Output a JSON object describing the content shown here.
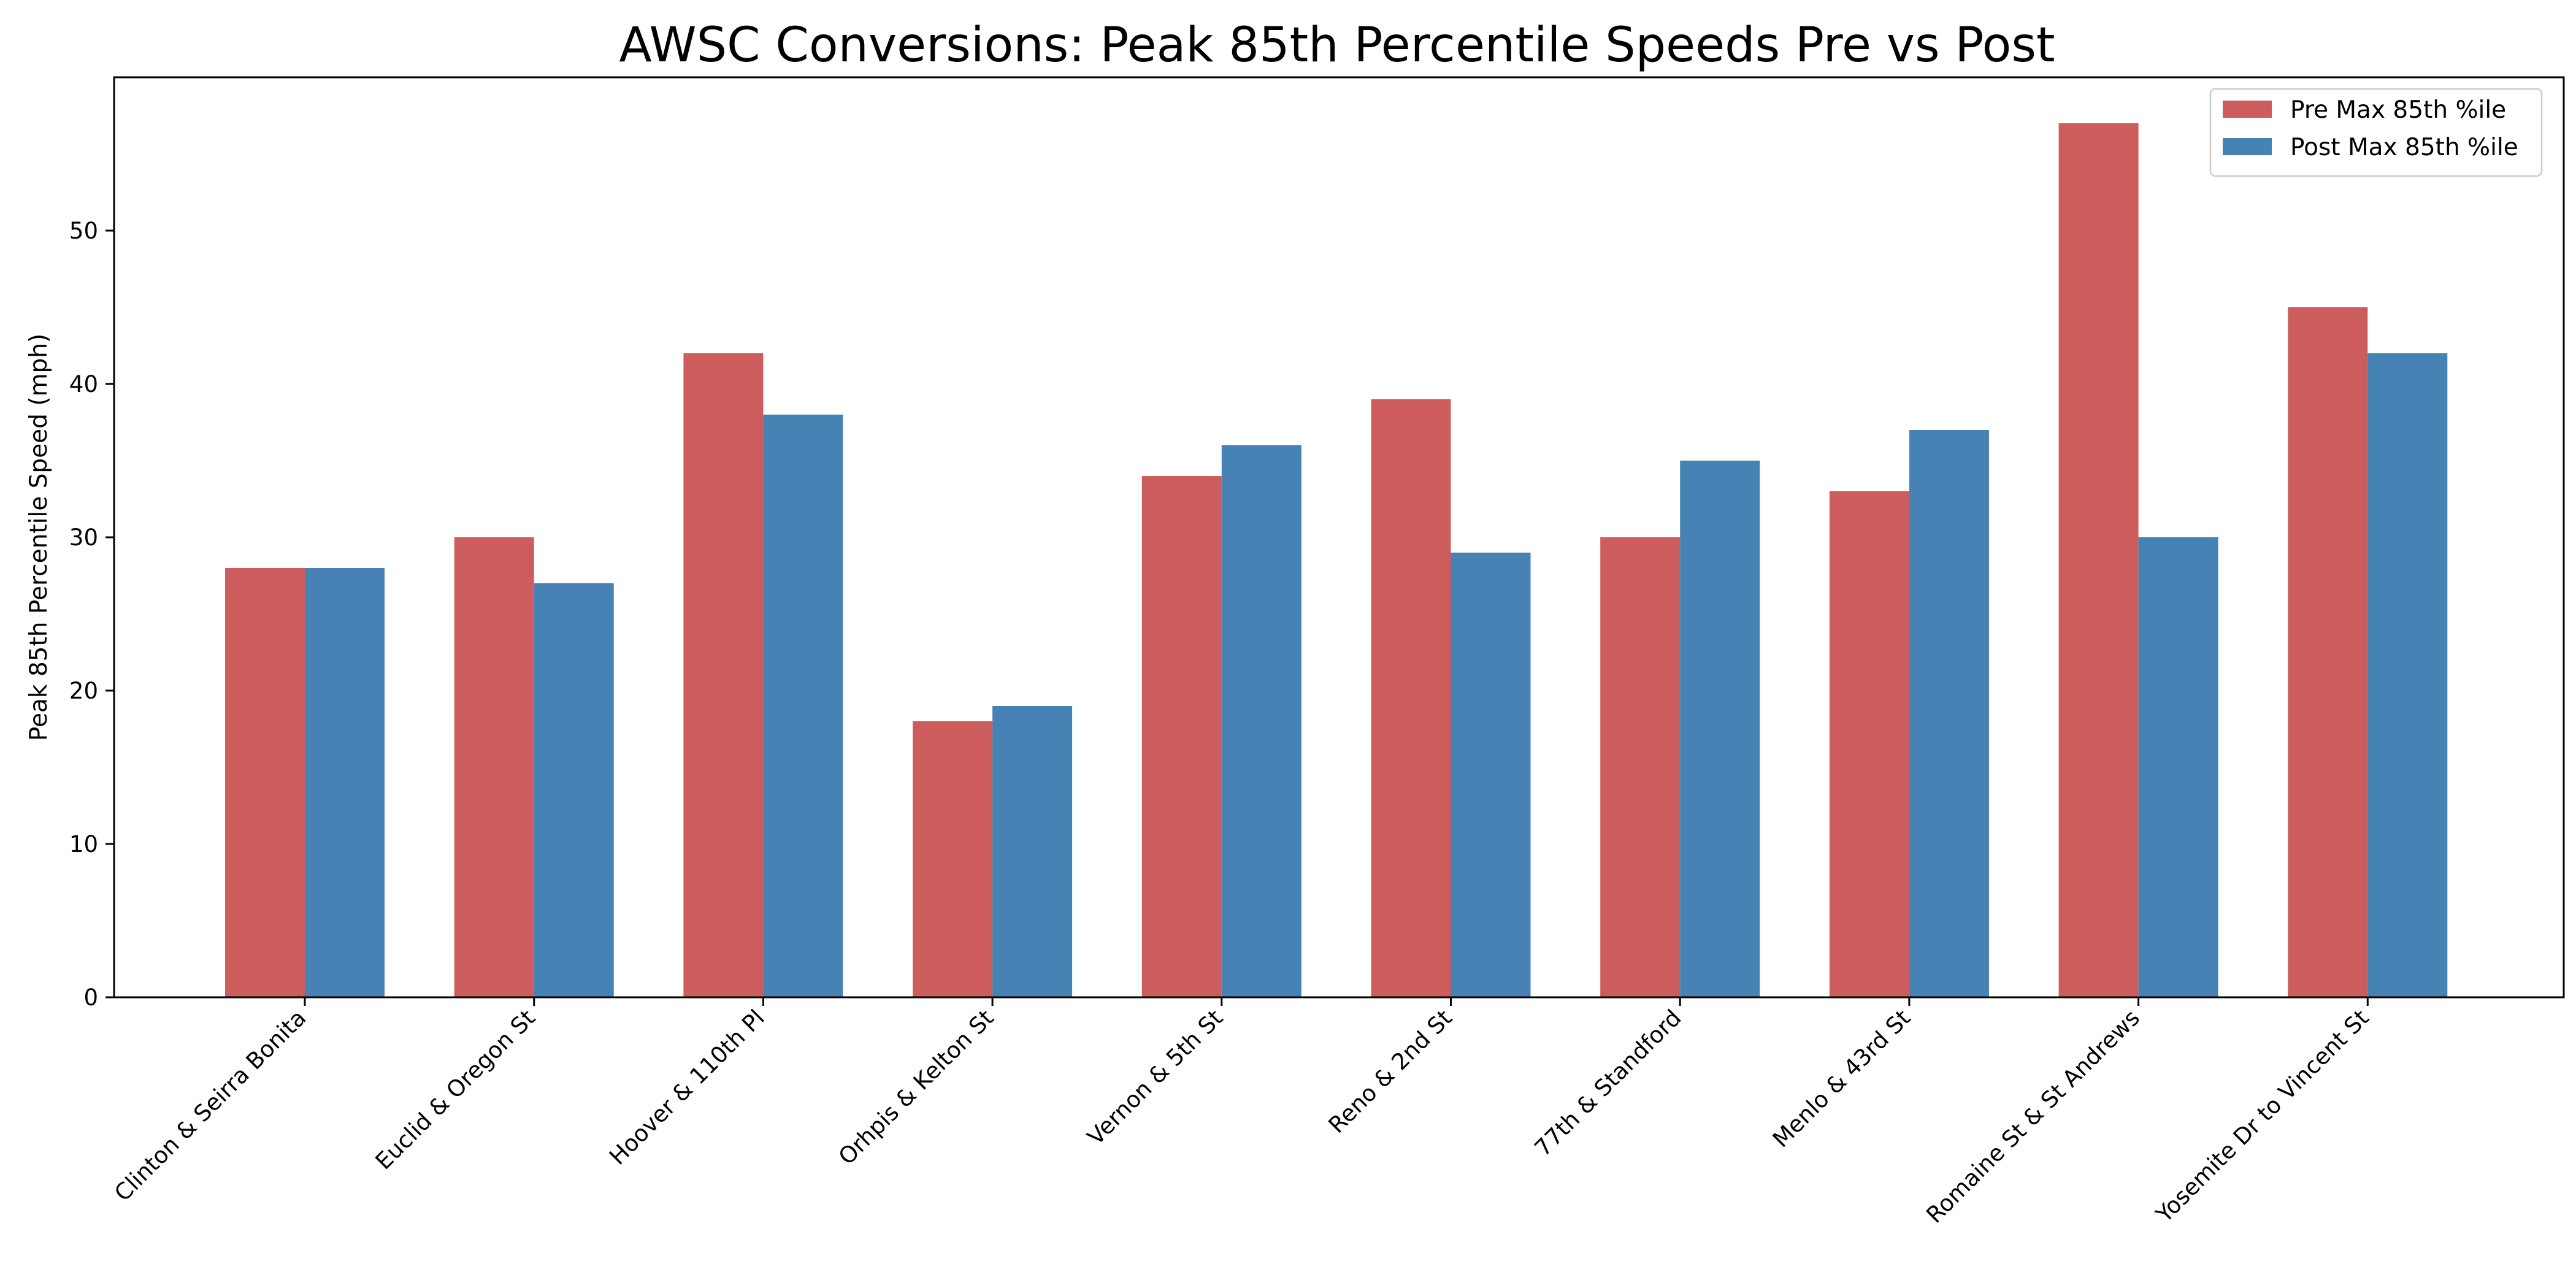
{
  "chart_data": {
    "type": "bar",
    "title": "AWSC Conversions: Peak 85th Percentile Speeds Pre vs Post",
    "xlabel": "",
    "ylabel": "Peak 85th Percentile Speed (mph)",
    "ylim": [
      0,
      60
    ],
    "yticks": [
      0,
      10,
      20,
      30,
      40,
      50
    ],
    "grid": false,
    "legend_position": "top-right",
    "categories": [
      "Clinton & Seirra Bonita",
      "Euclid & Oregon St",
      "Hoover & 110th Pl",
      "Orhpis & Kelton St",
      "Vernon & 5th St",
      "Reno & 2nd St",
      "77th & Standford",
      "Menlo & 43rd St",
      "Romaine St & St Andrews",
      "Yosemite Dr to Vincent St"
    ],
    "series": [
      {
        "name": "Pre Max 85th %ile",
        "color": "#cd5c5c",
        "values": [
          28,
          30,
          42,
          18,
          34,
          39,
          30,
          33,
          57,
          45
        ]
      },
      {
        "name": "Post Max 85th %ile",
        "color": "#4682b4",
        "values": [
          28,
          27,
          38,
          19,
          36,
          29,
          35,
          37,
          30,
          42
        ]
      }
    ]
  }
}
